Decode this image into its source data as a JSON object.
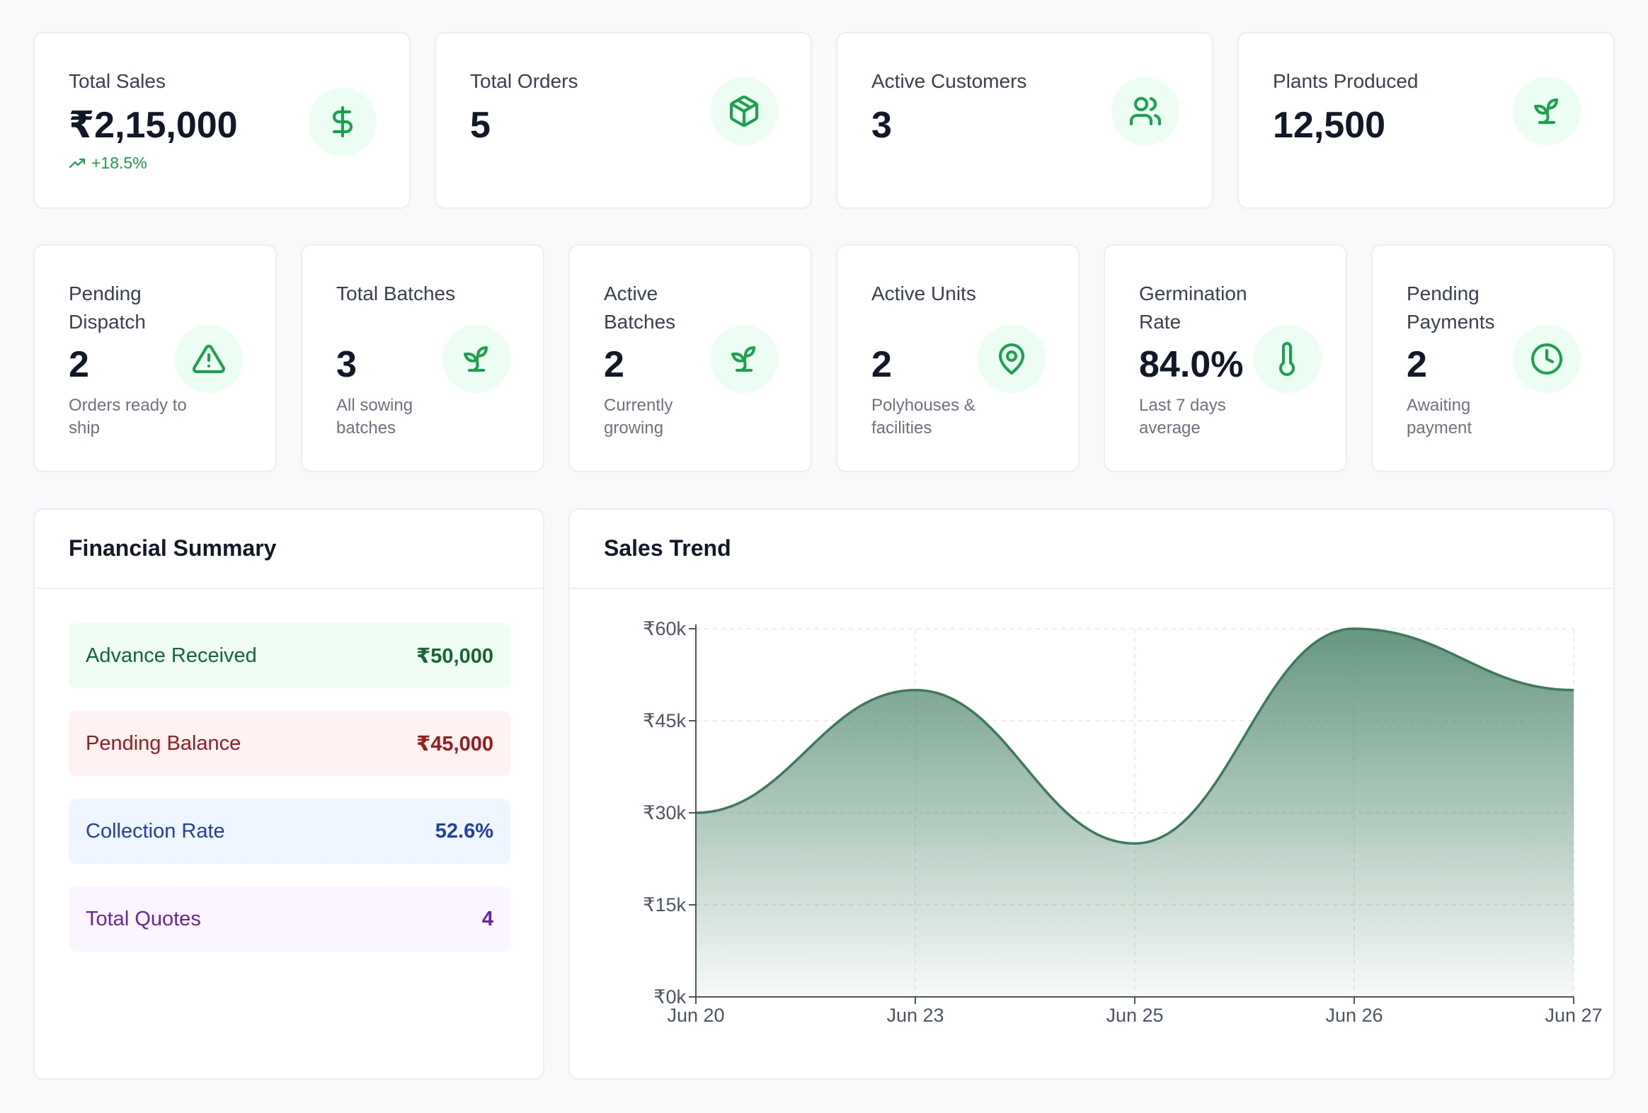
{
  "top_stats": [
    {
      "label": "Total Sales",
      "value": "₹2,15,000",
      "trend": "+18.5%",
      "icon": "dollar-icon"
    },
    {
      "label": "Total Orders",
      "value": "5",
      "icon": "package-icon"
    },
    {
      "label": "Active Customers",
      "value": "3",
      "icon": "users-icon"
    },
    {
      "label": "Plants Produced",
      "value": "12,500",
      "icon": "sprout-icon"
    }
  ],
  "small_stats": [
    {
      "label": "Pending Dispatch",
      "value": "2",
      "sub": "Orders ready to ship",
      "icon": "alert-triangle-icon"
    },
    {
      "label": "Total Batches",
      "value": "3",
      "sub": "All sowing batches",
      "icon": "sprout-icon"
    },
    {
      "label": "Active Batches",
      "value": "2",
      "sub": "Currently growing",
      "icon": "sprout-icon"
    },
    {
      "label": "Active Units",
      "value": "2",
      "sub": "Polyhouses & facilities",
      "icon": "map-pin-icon"
    },
    {
      "label": "Germination Rate",
      "value": "84.0%",
      "sub": "Last 7 days average",
      "icon": "thermometer-icon"
    },
    {
      "label": "Pending Payments",
      "value": "2",
      "sub": "Awaiting payment",
      "icon": "clock-icon"
    }
  ],
  "financial": {
    "title": "Financial Summary",
    "rows": [
      {
        "label": "Advance Received",
        "value": "₹50,000",
        "color": "#166534",
        "bg": "#f0fdf4"
      },
      {
        "label": "Pending Balance",
        "value": "₹45,000",
        "color": "#991b1b",
        "bg": "#fef2f2"
      },
      {
        "label": "Collection Rate",
        "value": "52.6%",
        "color": "#1e40af",
        "bg": "#eff6ff"
      },
      {
        "label": "Total Quotes",
        "value": "4",
        "color": "#6b21a8",
        "bg": "#faf5ff"
      }
    ]
  },
  "sales_trend": {
    "title": "Sales Trend"
  },
  "colors": {
    "accent": "#16a34a",
    "accent_bg": "#ecfdf3",
    "chart_line": "#3b7a5c"
  },
  "chart_data": {
    "type": "area",
    "categories": [
      "Jun 20",
      "Jun 23",
      "Jun 25",
      "Jun 26",
      "Jun 27"
    ],
    "values": [
      30000,
      50000,
      25000,
      60000,
      50000
    ],
    "ylim": [
      0,
      60000
    ],
    "yticks": [
      "₹0k",
      "₹15k",
      "₹30k",
      "₹45k",
      "₹60k"
    ],
    "grid": true
  }
}
